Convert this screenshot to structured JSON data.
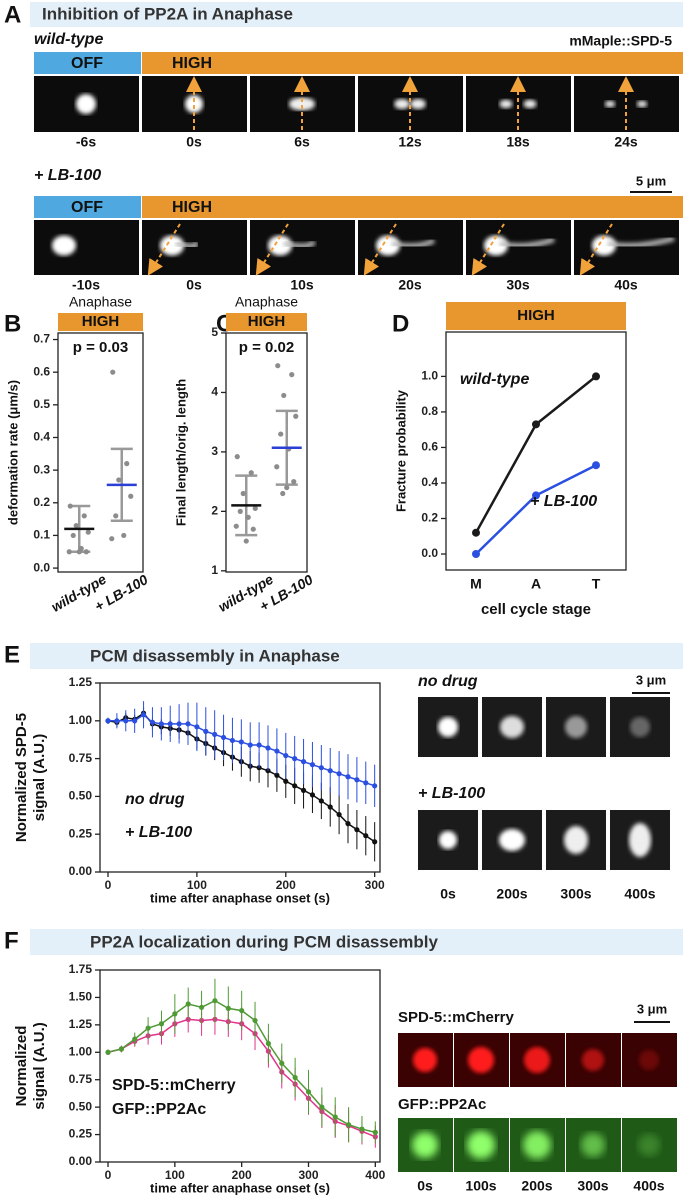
{
  "panel_a": {
    "letter": "A",
    "title": "Inhibition of PP2A in Anaphase",
    "label_tag": "mMaple::SPD-5",
    "scale_bar": "5 μm",
    "rows": [
      {
        "name": "wild-type",
        "off": "OFF",
        "high": "HIGH",
        "times": [
          "-6s",
          "0s",
          "6s",
          "12s",
          "18s",
          "24s"
        ]
      },
      {
        "name": "+ LB-100",
        "off": "OFF",
        "high": "HIGH",
        "times": [
          "-10s",
          "0s",
          "10s",
          "20s",
          "30s",
          "40s"
        ]
      }
    ]
  },
  "chart_data": [
    {
      "type": "dotplot",
      "letter": "B",
      "header": "Anaphase",
      "condition": "HIGH",
      "condition_color": "#e8962e",
      "annotation": "p = 0.03",
      "ylabel": "deformation rate (μm/s)",
      "ylim": [
        -0.012,
        0.72
      ],
      "yticks": [
        {
          "value": 0,
          "label": "0.0"
        },
        0.1,
        0.2,
        0.3,
        0.4,
        0.5,
        0.6,
        0.7
      ],
      "point_color": "#8c8c8c",
      "series": [
        {
          "name": "wild-type",
          "color": "#111111",
          "values": [
            0.19,
            0.16,
            0.13,
            0.11,
            0.1,
            0.06,
            0.05,
            0.05,
            0.05
          ],
          "mean": 0.12,
          "sd": 0.07
        },
        {
          "name": "+ LB-100",
          "color": "#2b3ed6",
          "values": [
            0.6,
            0.32,
            0.27,
            0.22,
            0.16,
            0.1,
            0.09
          ],
          "mean": 0.255,
          "sd": 0.11
        }
      ]
    },
    {
      "type": "dotplot",
      "letter": "C",
      "header": "Anaphase",
      "condition": "HIGH",
      "condition_color": "#e8962e",
      "annotation": "p = 0.02",
      "ylabel": "Final length/orig. length",
      "ylim": [
        0.98,
        5
      ],
      "yticks": [
        1,
        2,
        3,
        4,
        5
      ],
      "point_color": "#8c8c8c",
      "series": [
        {
          "name": "wild-type",
          "color": "#111111",
          "values": [
            2.92,
            2.65,
            2.3,
            2.05,
            2.0,
            1.9,
            1.75,
            1.7,
            1.5
          ],
          "mean": 2.1,
          "sd": 0.5
        },
        {
          "name": "+ LB-100",
          "color": "#2b3ed6",
          "values": [
            4.45,
            4.3,
            3.95,
            3.6,
            3.3,
            3.05,
            2.75,
            2.5,
            2.4,
            2.3
          ],
          "mean": 3.07,
          "sd": 0.62
        }
      ]
    },
    {
      "type": "line",
      "letter": "D",
      "condition": "HIGH",
      "condition_color": "#e8962e",
      "ylabel": "Fracture probability",
      "xlabel": "cell cycle stage",
      "categories": [
        "M",
        "A",
        "T"
      ],
      "ylim": [
        -0.09,
        1.25
      ],
      "yticks": [
        {
          "value": 0,
          "label": "0.0"
        },
        0.2,
        0.4,
        0.6,
        0.8,
        {
          "value": 1,
          "label": "1.0"
        }
      ],
      "series": [
        {
          "name": "wild-type",
          "color": "#1a1a1a",
          "values": [
            0.12,
            0.73,
            1.0
          ]
        },
        {
          "name": "+ LB-100",
          "color": "#2b4fe0",
          "values": [
            0,
            0.33,
            0.5
          ]
        }
      ]
    },
    {
      "type": "line",
      "letter": "E",
      "title": "PCM disassembly in Anaphase",
      "ylabel": [
        "Normalized SPD-5",
        "signal (A.U.)"
      ],
      "xlabel": "time after anaphase onset (s)",
      "xlim": [
        -9,
        306
      ],
      "xticks": [
        0,
        100,
        200,
        300
      ],
      "ylim": [
        0,
        1.25
      ],
      "yticks": [
        {
          "value": 0,
          "label": "0.00"
        },
        0.25,
        {
          "value": 0.5,
          "label": "0.50"
        },
        0.75,
        {
          "value": 1,
          "label": "1.00"
        },
        1.25
      ],
      "x": [
        0,
        10,
        20,
        30,
        40,
        50,
        60,
        70,
        80,
        90,
        100,
        110,
        120,
        130,
        140,
        150,
        160,
        170,
        180,
        190,
        200,
        210,
        220,
        230,
        240,
        250,
        260,
        270,
        280,
        290,
        300
      ],
      "series": [
        {
          "name": "no drug",
          "color": "#111111",
          "values": [
            1.0,
            0.99,
            1.02,
            1.01,
            1.05,
            0.98,
            0.96,
            0.95,
            0.94,
            0.92,
            0.88,
            0.85,
            0.82,
            0.79,
            0.76,
            0.73,
            0.7,
            0.69,
            0.67,
            0.64,
            0.6,
            0.57,
            0.54,
            0.51,
            0.47,
            0.43,
            0.38,
            0.32,
            0.28,
            0.24,
            0.2
          ],
          "errors": [
            0.02,
            0.03,
            0.03,
            0.03,
            0.04,
            0.04,
            0.05,
            0.05,
            0.06,
            0.06,
            0.07,
            0.08,
            0.08,
            0.09,
            0.09,
            0.1,
            0.1,
            0.1,
            0.11,
            0.11,
            0.11,
            0.12,
            0.12,
            0.12,
            0.12,
            0.13,
            0.13,
            0.13,
            0.13,
            0.13,
            0.13
          ]
        },
        {
          "name": "+ LB-100",
          "color": "#2b4fe0",
          "values": [
            1.0,
            1.0,
            1.0,
            1.0,
            1.04,
            0.99,
            0.98,
            0.98,
            0.98,
            0.98,
            0.96,
            0.93,
            0.91,
            0.89,
            0.87,
            0.86,
            0.84,
            0.84,
            0.82,
            0.8,
            0.77,
            0.75,
            0.73,
            0.71,
            0.69,
            0.67,
            0.65,
            0.63,
            0.61,
            0.59,
            0.57
          ],
          "errors": [
            0.02,
            0.05,
            0.07,
            0.08,
            0.09,
            0.1,
            0.11,
            0.12,
            0.13,
            0.14,
            0.16,
            0.16,
            0.16,
            0.15,
            0.15,
            0.15,
            0.15,
            0.15,
            0.15,
            0.15,
            0.15,
            0.15,
            0.15,
            0.15,
            0.15,
            0.15,
            0.15,
            0.15,
            0.15,
            0.14,
            0.14
          ]
        }
      ]
    },
    {
      "type": "line",
      "letter": "F",
      "title": "PP2A localization during PCM disassembly",
      "ylabel": [
        "Normalized",
        "signal (A.U.)"
      ],
      "xlabel": "time after anaphase onset (s)",
      "xlim": [
        -12,
        407
      ],
      "xticks": [
        0,
        100,
        200,
        300,
        400
      ],
      "ylim": [
        0,
        1.75
      ],
      "yticks": [
        {
          "value": 0,
          "label": "0.00"
        },
        0.25,
        {
          "value": 0.5,
          "label": "0.50"
        },
        0.75,
        {
          "value": 1,
          "label": "1.00"
        },
        1.25,
        {
          "value": 1.5,
          "label": "1.50"
        },
        1.75
      ],
      "x": [
        0,
        20,
        40,
        60,
        80,
        100,
        120,
        140,
        160,
        180,
        200,
        220,
        240,
        260,
        280,
        300,
        320,
        340,
        360,
        380,
        400
      ],
      "series": [
        {
          "name": "SPD-5::mCherry",
          "color": "#e0338a",
          "values": [
            1.0,
            1.03,
            1.1,
            1.15,
            1.17,
            1.26,
            1.3,
            1.29,
            1.3,
            1.28,
            1.26,
            1.17,
            1.01,
            0.82,
            0.71,
            0.58,
            0.46,
            0.37,
            0.33,
            0.28,
            0.23
          ],
          "errors": [
            0,
            0.03,
            0.05,
            0.08,
            0.1,
            0.12,
            0.12,
            0.14,
            0.14,
            0.14,
            0.15,
            0.15,
            0.15,
            0.15,
            0.15,
            0.15,
            0.15,
            0.15,
            0.15,
            0.12,
            0.1
          ]
        },
        {
          "name": "GFP::PP2Ac",
          "color": "#4f9a35",
          "values": [
            1.0,
            1.03,
            1.12,
            1.22,
            1.26,
            1.35,
            1.44,
            1.41,
            1.47,
            1.4,
            1.38,
            1.29,
            1.08,
            0.9,
            0.77,
            0.64,
            0.5,
            0.41,
            0.34,
            0.3,
            0.27
          ],
          "errors": [
            0,
            0.03,
            0.06,
            0.1,
            0.12,
            0.18,
            0.15,
            0.15,
            0.2,
            0.2,
            0.18,
            0.17,
            0.18,
            0.18,
            0.18,
            0.2,
            0.18,
            0.18,
            0.16,
            0.12,
            0.1
          ]
        }
      ]
    }
  ],
  "panel_e_images": {
    "rows": [
      "no drug",
      "+ LB-100"
    ],
    "scale_bar": "3 μm",
    "times": [
      "0s",
      "200s",
      "300s",
      "400s"
    ]
  },
  "panel_f_images": {
    "rows": [
      "SPD-5::mCherry",
      "GFP::PP2Ac"
    ],
    "scale_bar": "3 μm",
    "times": [
      "0s",
      "100s",
      "200s",
      "300s",
      "400s"
    ]
  }
}
